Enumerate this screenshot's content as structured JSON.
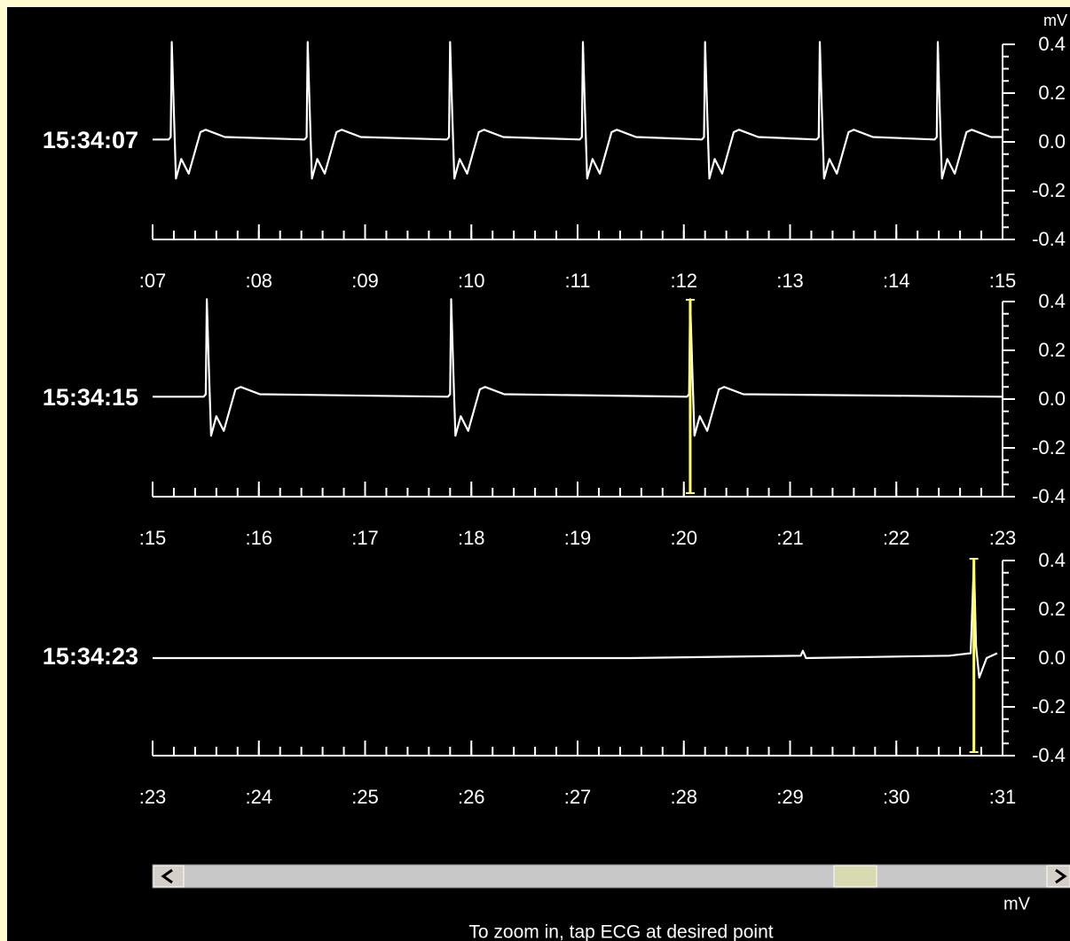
{
  "chart_data": [
    {
      "type": "line",
      "title": "15:34:07",
      "color": "#ffffff",
      "xlim": [
        7,
        15
      ],
      "xticks": [
        {
          "value": 7,
          "label": ":07"
        },
        {
          "value": 8,
          "label": ":08"
        },
        {
          "value": 9,
          "label": ":09"
        },
        {
          "value": 10,
          "label": ":10"
        },
        {
          "value": 11,
          "label": ":11"
        },
        {
          "value": 12,
          "label": ":12"
        },
        {
          "value": 13,
          "label": ":13"
        },
        {
          "value": 14,
          "label": ":14"
        },
        {
          "value": 15,
          "label": ":15"
        }
      ],
      "x_minor_step": 0.2,
      "ylim": [
        -0.4,
        0.4
      ],
      "yticks": [
        0.4,
        0.2,
        {
          "value": 0,
          "label": "0.0"
        },
        -0.2,
        -0.4
      ],
      "y_minor_step": 0.05,
      "x": [
        7.0,
        7.15,
        7.17,
        7.18,
        7.2,
        7.22,
        7.27,
        7.34,
        7.45,
        7.5,
        7.68,
        8.43,
        8.45,
        8.46,
        8.48,
        8.5,
        8.55,
        8.62,
        8.73,
        8.78,
        8.96,
        9.77,
        9.79,
        9.8,
        9.82,
        9.84,
        9.89,
        9.96,
        10.07,
        10.12,
        10.3,
        11.02,
        11.04,
        11.05,
        11.07,
        11.09,
        11.14,
        11.21,
        11.32,
        11.37,
        11.55,
        12.17,
        12.19,
        12.2,
        12.22,
        12.24,
        12.29,
        12.36,
        12.47,
        12.52,
        12.7,
        13.25,
        13.27,
        13.28,
        13.3,
        13.32,
        13.37,
        13.44,
        13.55,
        13.6,
        13.78,
        14.36,
        14.38,
        14.39,
        14.41,
        14.43,
        14.48,
        14.55,
        14.66,
        14.71,
        14.89,
        15.0
      ],
      "values": [
        0.01,
        0.01,
        0.02,
        0.41,
        0.12,
        -0.15,
        -0.07,
        -0.13,
        0.04,
        0.05,
        0.02,
        0.01,
        0.02,
        0.41,
        0.12,
        -0.15,
        -0.07,
        -0.13,
        0.04,
        0.05,
        0.02,
        0.01,
        0.02,
        0.41,
        0.12,
        -0.15,
        -0.07,
        -0.13,
        0.04,
        0.05,
        0.02,
        0.01,
        0.02,
        0.41,
        0.12,
        -0.15,
        -0.07,
        -0.13,
        0.04,
        0.05,
        0.02,
        0.01,
        0.02,
        0.41,
        0.12,
        -0.15,
        -0.07,
        -0.13,
        0.04,
        0.05,
        0.02,
        0.01,
        0.02,
        0.41,
        0.12,
        -0.15,
        -0.07,
        -0.13,
        0.04,
        0.05,
        0.02,
        0.01,
        0.02,
        0.41,
        0.12,
        -0.15,
        -0.07,
        -0.13,
        0.04,
        0.05,
        0.02,
        0.02
      ]
    },
    {
      "type": "line",
      "title": "15:34:15",
      "color": "#ffffff",
      "xlim": [
        15,
        23
      ],
      "xticks": [
        {
          "value": 15,
          "label": ":15"
        },
        {
          "value": 16,
          "label": ":16"
        },
        {
          "value": 17,
          "label": ":17"
        },
        {
          "value": 18,
          "label": ":18"
        },
        {
          "value": 19,
          "label": ":19"
        },
        {
          "value": 20,
          "label": ":20"
        },
        {
          "value": 21,
          "label": ":21"
        },
        {
          "value": 22,
          "label": ":22"
        },
        {
          "value": 23,
          "label": ":23"
        }
      ],
      "x_minor_step": 0.2,
      "ylim": [
        -0.4,
        0.4
      ],
      "yticks": [
        0.4,
        0.2,
        {
          "value": 0,
          "label": "0.0"
        },
        -0.2,
        -0.4
      ],
      "y_minor_step": 0.05,
      "marker_x": 20.06,
      "x": [
        15.0,
        15.48,
        15.5,
        15.51,
        15.53,
        15.55,
        15.6,
        15.67,
        15.78,
        15.83,
        16.01,
        17.78,
        17.8,
        17.81,
        17.83,
        17.85,
        17.9,
        17.97,
        18.08,
        18.13,
        18.31,
        20.03,
        20.05,
        20.06,
        20.08,
        20.1,
        20.15,
        20.22,
        20.33,
        20.38,
        20.56,
        23.0
      ],
      "values": [
        0.01,
        0.01,
        0.02,
        0.41,
        0.12,
        -0.15,
        -0.07,
        -0.13,
        0.04,
        0.05,
        0.02,
        0.01,
        0.02,
        0.41,
        0.12,
        -0.15,
        -0.07,
        -0.13,
        0.04,
        0.05,
        0.02,
        0.01,
        0.02,
        0.41,
        0.12,
        -0.15,
        -0.07,
        -0.13,
        0.04,
        0.05,
        0.02,
        0.01
      ]
    },
    {
      "type": "line",
      "title": "15:34:23",
      "color": "#ffffff",
      "xlim": [
        23,
        31
      ],
      "xticks": [
        {
          "value": 23,
          "label": ":23"
        },
        {
          "value": 24,
          "label": ":24"
        },
        {
          "value": 25,
          "label": ":25"
        },
        {
          "value": 26,
          "label": ":26"
        },
        {
          "value": 27,
          "label": ":27"
        },
        {
          "value": 28,
          "label": ":28"
        },
        {
          "value": 29,
          "label": ":29"
        },
        {
          "value": 30,
          "label": ":30"
        },
        {
          "value": 31,
          "label": ":31"
        }
      ],
      "x_minor_step": 0.2,
      "ylim": [
        -0.4,
        0.4
      ],
      "yticks": [
        0.4,
        0.2,
        {
          "value": 0,
          "label": "0.0"
        },
        -0.2,
        -0.4
      ],
      "y_minor_step": 0.05,
      "marker_x": 30.73,
      "x": [
        23.0,
        24.5,
        26.0,
        27.5,
        29.1,
        29.12,
        29.15,
        30.5,
        30.7,
        30.73,
        30.75,
        30.78,
        30.85,
        30.95
      ],
      "values": [
        0.0,
        0.0,
        0.0,
        0.0,
        0.01,
        0.03,
        0.0,
        0.01,
        0.02,
        0.4,
        0.05,
        -0.08,
        0.0,
        0.02
      ]
    }
  ],
  "y_unit_top": "mV",
  "y_unit_bottom": "mV",
  "hint": "To zoom in, tap ECG at desired point"
}
